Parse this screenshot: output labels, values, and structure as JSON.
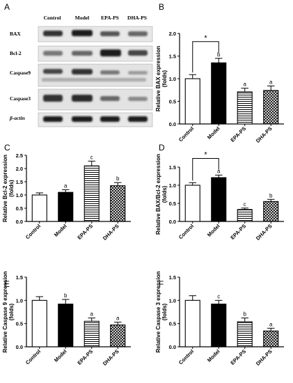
{
  "panels": {
    "A": "A",
    "B": "B",
    "C": "C",
    "D": "D",
    "E": "E",
    "F": "F"
  },
  "blot": {
    "columns": [
      "Control",
      "Model",
      "EPA-PS",
      "DHA-PS"
    ],
    "rows": [
      "BAX",
      "Bcl-2",
      "Caspase9",
      "Caspase3",
      "β-actin"
    ]
  },
  "chart_data": [
    {
      "panel": "B",
      "type": "bar",
      "categories": [
        "Control",
        "Model",
        "EPA-PS",
        "DHA-PS"
      ],
      "values": [
        1.0,
        1.35,
        0.71,
        0.74
      ],
      "errors": [
        0.09,
        0.1,
        0.08,
        0.1
      ],
      "letters": [
        "",
        "b",
        "a",
        "a"
      ],
      "ylabel": "Relative BAX expression",
      "ylabel2": "(folds)",
      "ylim": [
        0,
        2.0
      ],
      "ticks": [
        "0.0",
        "0.5",
        "1.0",
        "1.5",
        "2.0"
      ],
      "sig": "*"
    },
    {
      "panel": "C",
      "type": "bar",
      "categories": [
        "Control",
        "Model",
        "EPA-PS",
        "DHA-PS"
      ],
      "values": [
        1.0,
        1.1,
        2.1,
        1.35
      ],
      "errors": [
        0.08,
        0.1,
        0.18,
        0.12
      ],
      "letters": [
        "",
        "a",
        "c",
        "b"
      ],
      "ylabel": "Relative Bcl-2 expression",
      "ylabel2": "(folds)",
      "ylim": [
        0,
        2.5
      ],
      "ticks": [
        "0.0",
        "0.5",
        "1.0",
        "1.5",
        "2.0",
        "2.5"
      ]
    },
    {
      "panel": "D",
      "type": "bar",
      "categories": [
        "Control",
        "Model",
        "EPA-PS",
        "DHA-PS"
      ],
      "values": [
        1.0,
        1.21,
        0.33,
        0.55
      ],
      "errors": [
        0.07,
        0.07,
        0.04,
        0.06
      ],
      "letters": [
        "",
        "a",
        "c",
        "b"
      ],
      "ylabel": "Relative BAX/Bcl-2 expression",
      "ylabel2": "(folds)",
      "ylim": [
        0,
        1.5
      ],
      "ticks": [
        "0.0",
        "0.5",
        "1.0",
        "1.5"
      ],
      "sig": "*"
    },
    {
      "panel": "E",
      "type": "bar",
      "categories": [
        "Control",
        "Model",
        "EPA-PS",
        "DHA-PS"
      ],
      "values": [
        1.0,
        0.92,
        0.55,
        0.47
      ],
      "errors": [
        0.08,
        0.1,
        0.07,
        0.06
      ],
      "letters": [
        "",
        "b",
        "a",
        "a"
      ],
      "ylabel": "Relative Caspase 9 expression",
      "ylabel2": "(folds)",
      "ylim": [
        0,
        1.5
      ],
      "ticks": [
        "0.0",
        "0.5",
        "1.0",
        "1.5"
      ]
    },
    {
      "panel": "F",
      "type": "bar",
      "categories": [
        "Control",
        "Model",
        "EPA-PS",
        "DHA-PS"
      ],
      "values": [
        1.0,
        0.92,
        0.54,
        0.34
      ],
      "errors": [
        0.1,
        0.08,
        0.08,
        0.06
      ],
      "letters": [
        "",
        "c",
        "b",
        "a"
      ],
      "ylabel": "Relative Caspase 3 expression",
      "ylabel2": "(folds)",
      "ylim": [
        0,
        1.5
      ],
      "ticks": [
        "0.0",
        "0.5",
        "1.0",
        "1.5"
      ]
    }
  ]
}
